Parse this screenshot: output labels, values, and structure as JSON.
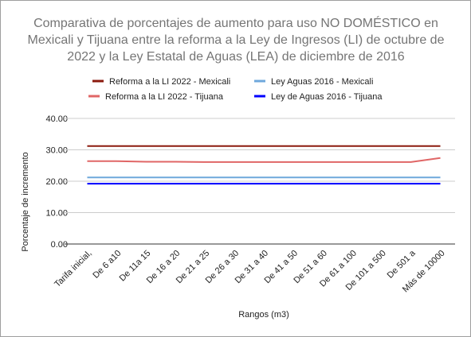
{
  "chart_data": {
    "type": "line",
    "title": "Comparativa de porcentajes de aumento para uso NO DOMÉSTICO en Mexicali y Tijuana entre la reforma a la Ley de Ingresos (LI) de octubre de 2022 y la Ley Estatal de Aguas (LEA) de diciembre de 2016",
    "x_label": "Rangos (m3)",
    "y_label": "Porcentaje de incremento",
    "categories": [
      "Tarifa inicial,",
      "De 6 a10",
      "De 11a 15",
      "De 16 a 20",
      "De 21 a 25",
      "De 26 a 30",
      "De 31 a 40",
      "De 41 a 50",
      "De 51 a 60",
      "De 61 a 100",
      "De 101 a 500",
      "De 501 a",
      "Más de 10000"
    ],
    "series": [
      {
        "name": "Reforma a la LI 2022 - Mexicali",
        "color": "#8b1a0e",
        "values": [
          31.2,
          31.2,
          31.2,
          31.2,
          31.2,
          31.2,
          31.2,
          31.2,
          31.2,
          31.2,
          31.2,
          31.2,
          31.2
        ]
      },
      {
        "name": "Ley Aguas 2016 - Mexicali",
        "color": "#6fa8dc",
        "values": [
          21.2,
          21.2,
          21.2,
          21.2,
          21.2,
          21.2,
          21.2,
          21.2,
          21.2,
          21.2,
          21.2,
          21.2,
          21.2
        ]
      },
      {
        "name": "Reforma a la LI 2022 - Tijuana",
        "color": "#e06666",
        "values": [
          26.4,
          26.4,
          26.2,
          26.2,
          26.1,
          26.1,
          26.1,
          26.1,
          26.1,
          26.1,
          26.1,
          26.1,
          27.4
        ]
      },
      {
        "name": "Ley de Aguas 2016 - Tijuana",
        "color": "#0000ff",
        "values": [
          19.2,
          19.2,
          19.2,
          19.2,
          19.2,
          19.2,
          19.2,
          19.2,
          19.2,
          19.2,
          19.2,
          19.2,
          19.2
        ]
      }
    ],
    "ylim": [
      0,
      40
    ],
    "yticks": [
      {
        "value": 0,
        "label": "0.00"
      },
      {
        "value": 10,
        "label": "10.00"
      },
      {
        "value": 20,
        "label": "20.00"
      },
      {
        "value": 30,
        "label": "30.00"
      },
      {
        "value": 40,
        "label": "40.00"
      }
    ],
    "grid": true
  }
}
